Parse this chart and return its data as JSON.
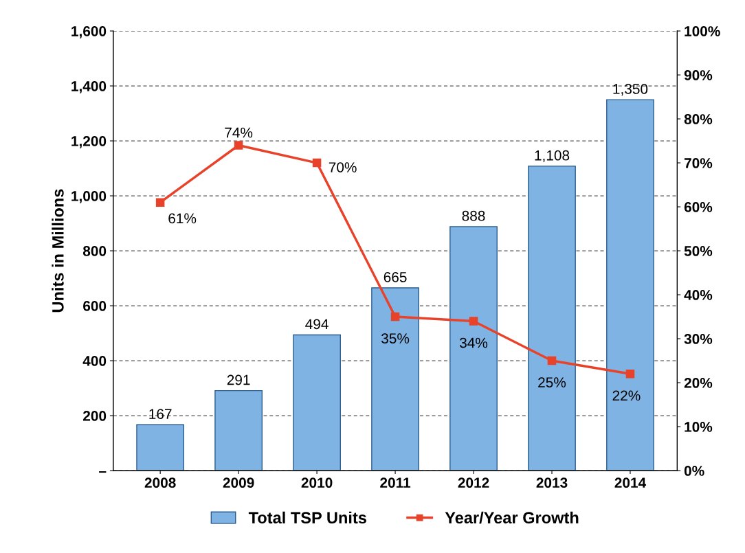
{
  "chart_data": {
    "type": "bar",
    "ylabel": "Units in Millions",
    "categories": [
      "2008",
      "2009",
      "2010",
      "2011",
      "2012",
      "2013",
      "2014"
    ],
    "series": [
      {
        "name": "Total TSP Units",
        "color": "#7fb3e3",
        "values": [
          167,
          291,
          494,
          665,
          888,
          1108,
          1350
        ],
        "value_labels": [
          "167",
          "291",
          "494",
          "665",
          "888",
          "1,108",
          "1,350"
        ]
      },
      {
        "name": "Year/Year Growth",
        "type": "line",
        "axis": "y2",
        "color": "#e8432a",
        "values": [
          61,
          74,
          70,
          35,
          34,
          25,
          22
        ],
        "value_labels": [
          "61%",
          "74%",
          "70%",
          "35%",
          "34%",
          "25%",
          "22%"
        ]
      }
    ],
    "ylim": [
      0,
      1600
    ],
    "yticks": [
      {
        "value": 0,
        "label": "–"
      },
      200,
      400,
      600,
      800,
      {
        "value": 1000,
        "label": "1,000"
      },
      {
        "value": 1200,
        "label": "1,200"
      },
      {
        "value": 1400,
        "label": "1,400"
      },
      {
        "value": 1600,
        "label": "1,600"
      }
    ],
    "y2lim": [
      0,
      100
    ],
    "y2ticks": [
      {
        "value": 0,
        "label": "0%"
      },
      {
        "value": 10,
        "label": "10%"
      },
      {
        "value": 20,
        "label": "20%"
      },
      {
        "value": 30,
        "label": "30%"
      },
      {
        "value": 40,
        "label": "40%"
      },
      {
        "value": 50,
        "label": "50%"
      },
      {
        "value": 60,
        "label": "60%"
      },
      {
        "value": 70,
        "label": "70%"
      },
      {
        "value": 80,
        "label": "80%"
      },
      {
        "value": 90,
        "label": "90%"
      },
      {
        "value": 100,
        "label": "100%"
      }
    ],
    "grid": "y",
    "legend": "bottom",
    "marker": "square",
    "line_style": "solid"
  }
}
